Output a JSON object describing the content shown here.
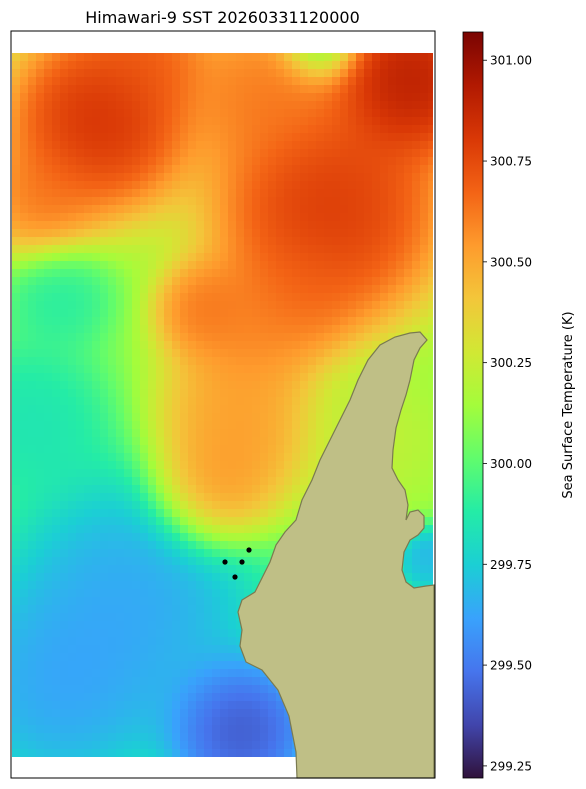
{
  "chart_data": {
    "type": "heatmap",
    "title": "Himawari-9 SST 20260331120000",
    "colorbar": {
      "label": "Sea Surface Temperature (K)",
      "vmin": 299.22,
      "vmax": 301.07,
      "ticks": [
        299.25,
        299.5,
        299.75,
        300.0,
        300.25,
        300.5,
        300.75,
        301.0
      ],
      "tick_labels": [
        "299.25",
        "299.50",
        "299.75",
        "300.00",
        "300.25",
        "300.50",
        "300.75",
        "301.00"
      ],
      "colormap": "turbo"
    },
    "field_hotspots": [
      {
        "value": 301.05
      },
      {
        "value": 300.9
      },
      {
        "value": 300.95
      },
      {
        "value": 300.75
      },
      {
        "value": 300.7
      },
      {
        "value": 300.7
      },
      {
        "value": 300.65
      },
      {
        "value": 300.7
      },
      {
        "value": 300.6
      },
      {
        "value": 300.65
      },
      {
        "value": 300.7
      },
      {
        "value": 299.55
      },
      {
        "value": 299.3
      },
      {
        "value": 299.55
      },
      {
        "value": 299.75
      },
      {
        "value": 299.8
      },
      {
        "value": 299.85
      },
      {
        "value": 300.25
      },
      {
        "value": 299.9
      },
      {
        "value": 299.55
      }
    ],
    "base_value": 300.12,
    "land_color": "#bfbf86",
    "land_edge_color": "#7a7a50",
    "markers": 4,
    "grid": false
  }
}
